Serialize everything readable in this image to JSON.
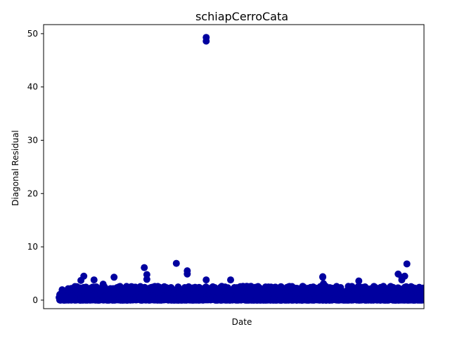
{
  "chart_data": {
    "type": "scatter",
    "title": "schiapCerroCata",
    "xlabel": "Date",
    "ylabel": "Diagonal Residual",
    "ylim": [
      -1.6,
      51.7
    ],
    "yticks": [
      0,
      10,
      20,
      30,
      40,
      50
    ],
    "ytick_labels": [
      "0",
      "10",
      "20",
      "30",
      "40",
      "50"
    ],
    "xticks": [],
    "xlim": [
      0,
      1
    ],
    "marker_color": "#00009f",
    "grid": false,
    "legend": "none",
    "outliers": {
      "x": [
        0.404,
        0.404,
        0.322,
        0.352,
        0.352,
        0.955,
        0.949,
        0.234,
        0.068,
        0.241,
        0.121,
        0.931,
        0.724,
        0.823,
        0.404,
        0.471,
        0.096,
        0.06,
        0.151,
        0.726,
        0.941,
        0.941,
        0.724,
        0.241
      ],
      "y": [
        49.3,
        48.6,
        6.9,
        5.5,
        4.9,
        6.8,
        4.5,
        6.1,
        4.5,
        4.8,
        3.0,
        4.9,
        4.4,
        3.6,
        3.8,
        3.8,
        3.8,
        3.7,
        4.3,
        3.1,
        4.3,
        3.8,
        4.3,
        3.9
      ]
    },
    "dense_band": {
      "x_range": [
        0,
        1
      ],
      "y_range": [
        0,
        2.6
      ],
      "count": 2200
    }
  }
}
